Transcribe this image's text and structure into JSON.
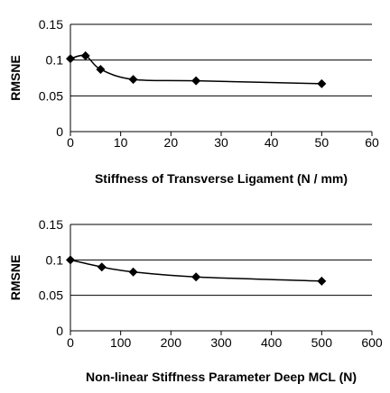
{
  "chart_data": [
    {
      "type": "line",
      "title": "",
      "xlabel": "Stiffness of Transverse Ligament (N / mm)",
      "ylabel": "RMSNE",
      "xlim": [
        0,
        60
      ],
      "ylim": [
        0,
        0.15
      ],
      "x_ticks": [
        0,
        10,
        20,
        30,
        40,
        50,
        60
      ],
      "y_ticks": [
        0,
        0.05,
        0.1,
        0.15
      ],
      "x_tick_labels": [
        "0",
        "10",
        "20",
        "30",
        "40",
        "50",
        "60"
      ],
      "y_tick_labels": [
        "0",
        "0.05",
        "0.1",
        "0.15"
      ],
      "grid": "horizontal",
      "legend": "none",
      "series": [
        {
          "x": [
            0,
            3,
            6,
            12.5,
            25,
            50
          ],
          "values": [
            0.102,
            0.106,
            0.087,
            0.073,
            0.071,
            0.067
          ]
        }
      ],
      "line_color": "#000000",
      "marker": "diamond"
    },
    {
      "type": "line",
      "title": "",
      "xlabel": "Non-linear Stiffness Parameter Deep MCL (N)",
      "ylabel": "RMSNE",
      "xlim": [
        0,
        600
      ],
      "ylim": [
        0,
        0.15
      ],
      "x_ticks": [
        0,
        100,
        200,
        300,
        400,
        500,
        600
      ],
      "y_ticks": [
        0,
        0.05,
        0.1,
        0.15
      ],
      "x_tick_labels": [
        "0",
        "100",
        "200",
        "300",
        "400",
        "500",
        "600"
      ],
      "y_tick_labels": [
        "0",
        "0.05",
        "0.1",
        "0.15"
      ],
      "grid": "horizontal",
      "legend": "none",
      "series": [
        {
          "x": [
            0,
            62.5,
            125,
            250,
            500
          ],
          "values": [
            0.1,
            0.09,
            0.083,
            0.076,
            0.07
          ]
        }
      ],
      "line_color": "#000000",
      "marker": "diamond"
    }
  ]
}
